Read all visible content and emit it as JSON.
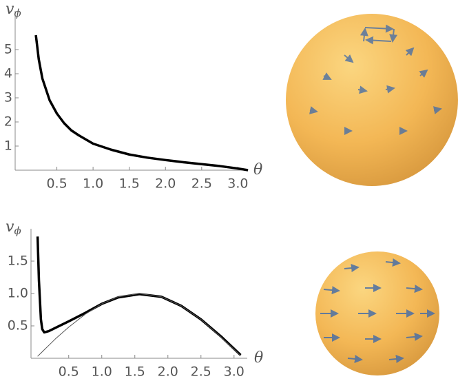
{
  "chart_data": [
    {
      "type": "line",
      "y_label": "v",
      "y_label_sub": "ϕ",
      "x_label": "θ",
      "xlim": [
        -0.076,
        3.12
      ],
      "ylim": [
        0,
        6.6
      ],
      "xticks": [
        0.5,
        {
          "value": 1,
          "label": "1.0"
        },
        1.5,
        {
          "value": 2,
          "label": "2.0"
        },
        2.5,
        {
          "value": 3,
          "label": "3.0"
        }
      ],
      "yticks": [
        1,
        2,
        3,
        4,
        5
      ],
      "series": [
        {
          "color": "#000000",
          "width": 3.5,
          "x": [
            0.21,
            0.25,
            0.3,
            0.4,
            0.5,
            0.6,
            0.7,
            0.8,
            1.0,
            1.25,
            1.5,
            1.75,
            2.0,
            2.25,
            2.5,
            2.75,
            3.0,
            3.14
          ],
          "values": [
            5.6,
            4.6,
            3.8,
            2.9,
            2.35,
            1.95,
            1.65,
            1.45,
            1.1,
            0.85,
            0.65,
            0.52,
            0.42,
            0.33,
            0.25,
            0.17,
            0.07,
            0.0
          ]
        }
      ]
    },
    {
      "type": "line",
      "y_label": "v",
      "y_label_sub": "ϕ",
      "x_label": "θ",
      "xlim": [
        -0.07,
        3.2
      ],
      "ylim": [
        0,
        2.0
      ],
      "xticks": [
        0.5,
        {
          "value": 1,
          "label": "1.0"
        },
        1.5,
        {
          "value": 2,
          "label": "2.0"
        },
        2.5,
        {
          "value": 3,
          "label": "3.0"
        }
      ],
      "yticks": [
        0.5,
        {
          "value": 1,
          "label": "1.0"
        },
        1.5
      ],
      "series": [
        {
          "color": "#000000",
          "width": 3.5,
          "x": [
            0.03,
            0.05,
            0.08,
            0.1,
            0.13,
            0.2,
            0.3,
            0.5,
            0.75,
            1.0,
            1.25,
            1.57,
            1.9,
            2.2,
            2.5,
            2.8,
            3.1
          ],
          "values": [
            1.88,
            1.2,
            0.6,
            0.45,
            0.4,
            0.42,
            0.47,
            0.57,
            0.7,
            0.84,
            0.94,
            0.99,
            0.95,
            0.81,
            0.6,
            0.34,
            0.05
          ]
        },
        {
          "color": "#555555",
          "width": 1,
          "x": [
            0.03,
            0.05,
            0.08,
            0.1,
            0.13,
            0.2,
            0.3,
            0.5,
            0.75,
            1.0,
            1.25,
            1.57,
            1.9,
            2.2,
            2.5,
            2.8,
            3.1
          ],
          "values": [
            0.03,
            0.05,
            0.08,
            0.1,
            0.13,
            0.2,
            0.3,
            0.48,
            0.68,
            0.84,
            0.95,
            1.0,
            0.95,
            0.81,
            0.6,
            0.33,
            0.04
          ]
        }
      ]
    }
  ]
}
